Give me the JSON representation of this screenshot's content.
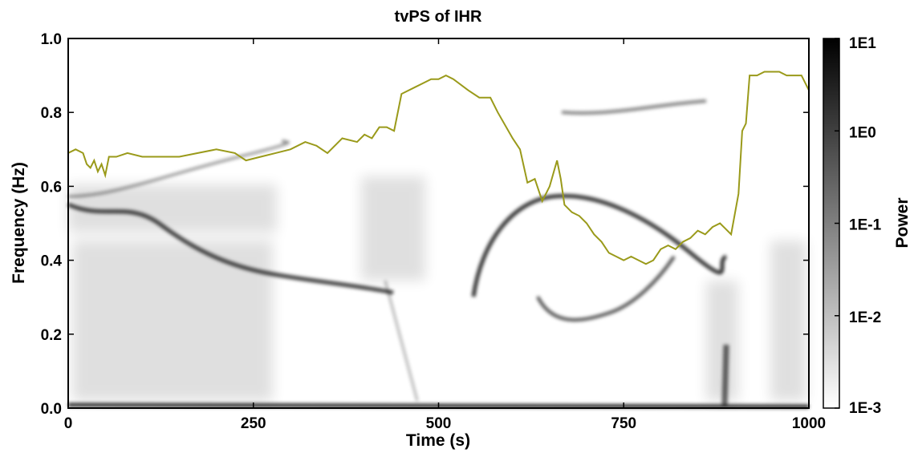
{
  "chart_data": {
    "type": "line",
    "title": "tvPS of IHR",
    "x_label": "Time (s)",
    "y_label": "Frequency (Hz)",
    "x": [
      0,
      10,
      20,
      25,
      30,
      35,
      40,
      45,
      50,
      55,
      65,
      80,
      100,
      125,
      150,
      175,
      200,
      225,
      240,
      260,
      280,
      300,
      320,
      335,
      350,
      370,
      390,
      400,
      410,
      420,
      430,
      440,
      450,
      470,
      490,
      500,
      510,
      520,
      540,
      555,
      570,
      580,
      600,
      610,
      620,
      630,
      640,
      650,
      660,
      665,
      670,
      680,
      690,
      700,
      710,
      720,
      730,
      740,
      750,
      760,
      770,
      780,
      790,
      800,
      810,
      820,
      830,
      840,
      850,
      860,
      870,
      880,
      890,
      895,
      905,
      910,
      915,
      920,
      930,
      940,
      950,
      960,
      970,
      980,
      990,
      1000
    ],
    "series": [
      {
        "color": "#9a9a1a",
        "values": [
          0.69,
          0.7,
          0.69,
          0.66,
          0.65,
          0.67,
          0.64,
          0.66,
          0.63,
          0.68,
          0.68,
          0.69,
          0.68,
          0.68,
          0.68,
          0.69,
          0.7,
          0.69,
          0.67,
          0.68,
          0.69,
          0.7,
          0.72,
          0.71,
          0.69,
          0.73,
          0.72,
          0.74,
          0.73,
          0.76,
          0.76,
          0.75,
          0.85,
          0.87,
          0.89,
          0.89,
          0.9,
          0.89,
          0.86,
          0.84,
          0.84,
          0.8,
          0.73,
          0.7,
          0.61,
          0.62,
          0.56,
          0.6,
          0.67,
          0.62,
          0.55,
          0.53,
          0.52,
          0.5,
          0.47,
          0.45,
          0.42,
          0.41,
          0.4,
          0.41,
          0.4,
          0.39,
          0.4,
          0.43,
          0.44,
          0.43,
          0.45,
          0.46,
          0.48,
          0.47,
          0.49,
          0.5,
          0.48,
          0.47,
          0.58,
          0.75,
          0.77,
          0.9,
          0.9,
          0.91,
          0.91,
          0.91,
          0.9,
          0.9,
          0.9,
          0.86
        ]
      }
    ],
    "xlim": [
      0,
      1000
    ],
    "xticks": [
      0,
      250,
      500,
      750,
      1000
    ],
    "ylim": [
      0,
      1
    ],
    "yticks": [
      {
        "value": 0,
        "label": "0.0"
      },
      {
        "value": 0.2,
        "label": "0.2"
      },
      {
        "value": 0.4,
        "label": "0.4"
      },
      {
        "value": 0.6,
        "label": "0.6"
      },
      {
        "value": 0.8,
        "label": "0.8"
      },
      {
        "value": 1,
        "label": "1.0"
      }
    ],
    "colorbar": {
      "label": "Power",
      "log_scale": true,
      "lim": [
        0.001,
        10
      ],
      "colors": [
        "#ffffff",
        "#000000"
      ],
      "ticks": [
        {
          "value": 0.001,
          "label": "1E-3"
        },
        {
          "value": 0.01,
          "label": "1E-2"
        },
        {
          "value": 0.1,
          "label": "1E-1"
        },
        {
          "value": 1,
          "label": "1E0"
        },
        {
          "value": 10,
          "label": "1E1"
        }
      ]
    }
  }
}
